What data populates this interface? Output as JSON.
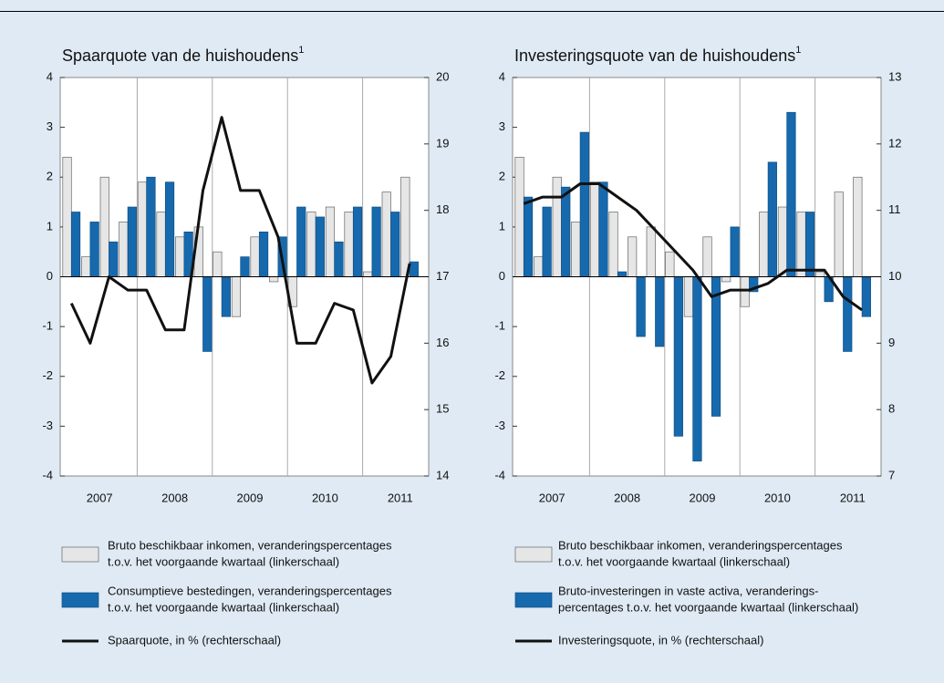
{
  "chart_data": [
    {
      "type": "bar",
      "title": "Spaarquote van de huishoudens",
      "title_note": "1",
      "categories": [
        null,
        null,
        null,
        null,
        null,
        null,
        null,
        null,
        null,
        null,
        null,
        null,
        null,
        null,
        null,
        null,
        null,
        null,
        null
      ],
      "x_labels": [
        "2007",
        "2008",
        "2009",
        "2010",
        "2011"
      ],
      "ylim": [
        -4,
        4
      ],
      "yticks": [
        -4,
        -3,
        -2,
        -1,
        0,
        1,
        2,
        3,
        4
      ],
      "y2lim": [
        14,
        20
      ],
      "y2ticks": [
        14,
        15,
        16,
        17,
        18,
        19,
        20
      ],
      "series": [
        {
          "name": [
            "Bruto beschikbaar inkomen, veranderingspercentages",
            "t.o.v. het voorgaande kwartaal (linkerschaal)"
          ],
          "color": "#e6e6e6",
          "values": [
            2.4,
            0.4,
            2.0,
            1.1,
            1.9,
            1.3,
            0.8,
            1.0,
            0.5,
            -0.8,
            0.8,
            -0.1,
            -0.6,
            1.3,
            1.4,
            1.3,
            0.1,
            1.7,
            2.0
          ]
        },
        {
          "name": [
            "Consumptieve bestedingen, veranderingspercentages",
            "t.o.v. het voorgaande kwartaal (linkerschaal)"
          ],
          "color": "#1769ad",
          "values": [
            1.3,
            1.1,
            0.7,
            1.4,
            2.0,
            1.9,
            0.9,
            -1.5,
            -0.8,
            0.4,
            0.9,
            0.8,
            1.4,
            1.2,
            0.7,
            1.4,
            1.4,
            1.3,
            0.3
          ]
        },
        {
          "name": [
            "Spaarquote, in % (rechterschaal)"
          ],
          "color": "#111111",
          "type": "line",
          "axis": "y2",
          "values": [
            16.6,
            16.0,
            17.0,
            16.8,
            16.8,
            16.2,
            16.2,
            18.3,
            19.4,
            18.3,
            18.3,
            17.6,
            16.0,
            16.0,
            16.6,
            16.5,
            15.4,
            15.8,
            17.2
          ]
        }
      ]
    },
    {
      "type": "bar",
      "title": "Investeringsquote van de huishoudens",
      "title_note": "1",
      "categories": [
        null,
        null,
        null,
        null,
        null,
        null,
        null,
        null,
        null,
        null,
        null,
        null,
        null,
        null,
        null,
        null,
        null,
        null,
        null
      ],
      "x_labels": [
        "2007",
        "2008",
        "2009",
        "2010",
        "2011"
      ],
      "ylim": [
        -4,
        4
      ],
      "yticks": [
        -4,
        -3,
        -2,
        -1,
        0,
        1,
        2,
        3,
        4
      ],
      "y2lim": [
        7,
        13
      ],
      "y2ticks": [
        7,
        8,
        9,
        10,
        11,
        12,
        13
      ],
      "series": [
        {
          "name": [
            "Bruto beschikbaar inkomen, veranderingspercentages",
            "t.o.v. het voorgaande kwartaal (linkerschaal)"
          ],
          "color": "#e6e6e6",
          "values": [
            2.4,
            0.4,
            2.0,
            1.1,
            1.9,
            1.3,
            0.8,
            1.0,
            0.5,
            -0.8,
            0.8,
            -0.1,
            -0.6,
            1.3,
            1.4,
            1.3,
            0.1,
            1.7,
            2.0
          ]
        },
        {
          "name": [
            "Bruto-investeringen in vaste activa, veranderings-",
            "percentages t.o.v. het voorgaande kwartaal (linkerschaal)"
          ],
          "color": "#1769ad",
          "values": [
            1.6,
            1.4,
            1.8,
            2.9,
            1.9,
            0.1,
            -1.2,
            -1.4,
            -3.2,
            -3.7,
            -2.8,
            1.0,
            -0.3,
            2.3,
            3.3,
            1.3,
            -0.5,
            -1.5,
            -0.8
          ]
        },
        {
          "name": [
            "Investeringsquote, in % (rechterschaal)"
          ],
          "color": "#111111",
          "type": "line",
          "axis": "y2",
          "values": [
            11.1,
            11.2,
            11.2,
            11.4,
            11.4,
            11.2,
            11.0,
            10.7,
            10.4,
            10.1,
            9.7,
            9.8,
            9.8,
            9.9,
            10.1,
            10.1,
            10.1,
            9.7,
            9.5
          ]
        }
      ]
    }
  ]
}
